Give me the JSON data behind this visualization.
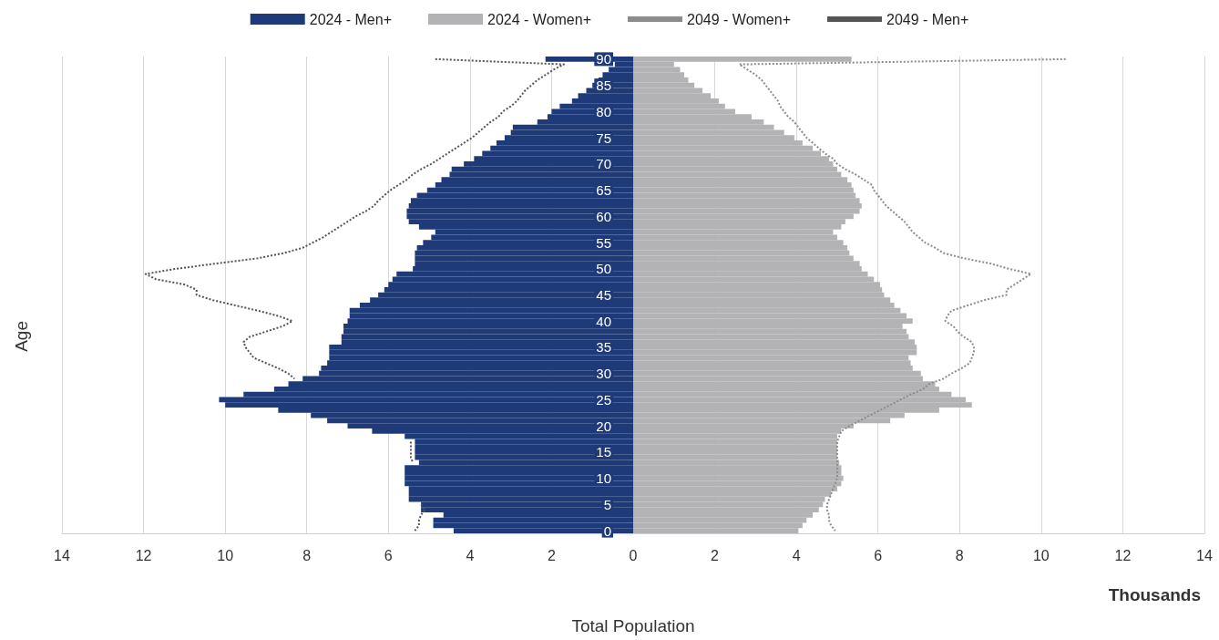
{
  "chart_data": {
    "type": "bar",
    "orientation": "horizontal",
    "xlabel": "Total Population",
    "ylabel": "Age",
    "annotations": [
      "Thousands"
    ],
    "categories": [
      "90",
      null,
      null,
      null,
      null,
      "85",
      null,
      null,
      null,
      null,
      "80",
      null,
      null,
      null,
      null,
      "75",
      null,
      null,
      null,
      null,
      "70",
      null,
      null,
      null,
      null,
      "65",
      null,
      null,
      null,
      null,
      "60",
      null,
      null,
      null,
      null,
      "55",
      null,
      null,
      null,
      null,
      "50",
      null,
      null,
      null,
      null,
      "45",
      null,
      null,
      null,
      null,
      "40",
      null,
      null,
      null,
      null,
      "35",
      null,
      null,
      null,
      null,
      "30",
      null,
      null,
      null,
      null,
      "25",
      null,
      null,
      null,
      null,
      "20",
      null,
      null,
      null,
      null,
      "15",
      null,
      null,
      null,
      null,
      "10",
      null,
      null,
      null,
      null,
      "5",
      null,
      null,
      null,
      null,
      "0"
    ],
    "series": [
      {
        "name": "2024 - Men+",
        "color": "#1f3a78",
        "values": [
          -2.15,
          -0.45,
          -0.6,
          -0.75,
          -0.85,
          -1.0,
          -1.15,
          -1.35,
          -1.5,
          -1.8,
          -2.0,
          -2.1,
          -2.35,
          -2.95,
          -3.0,
          -3.15,
          -3.35,
          -3.5,
          -3.7,
          -3.9,
          -4.15,
          -4.45,
          -4.5,
          -4.7,
          -4.85,
          -5.05,
          -5.3,
          -5.45,
          -5.5,
          -5.55,
          -5.55,
          -5.5,
          -5.25,
          -4.85,
          -4.95,
          -5.15,
          -5.3,
          -5.35,
          -5.35,
          -5.35,
          -5.4,
          -5.8,
          -5.9,
          -6.0,
          -6.1,
          -6.25,
          -6.45,
          -6.7,
          -6.95,
          -6.95,
          -7.0,
          -7.1,
          -7.1,
          -7.15,
          -7.15,
          -7.45,
          -7.45,
          -7.45,
          -7.5,
          -7.65,
          -7.7,
          -8.1,
          -8.45,
          -8.8,
          -9.55,
          -10.15,
          -10.0,
          -8.7,
          -7.9,
          -7.5,
          -7.0,
          -6.4,
          -5.6,
          -5.35,
          -5.35,
          -5.35,
          -5.35,
          -5.25,
          -5.6,
          -5.6,
          -5.6,
          -5.6,
          -5.5,
          -5.5,
          -5.5,
          -5.2,
          -5.2,
          -4.65,
          -4.9,
          -4.9,
          -4.4
        ]
      },
      {
        "name": "2024 - Women+",
        "color": "#b3b3b6",
        "values": [
          5.35,
          1.0,
          1.15,
          1.25,
          1.35,
          1.5,
          1.7,
          1.9,
          2.1,
          2.25,
          2.5,
          2.9,
          3.2,
          3.45,
          3.7,
          3.95,
          4.15,
          4.4,
          4.6,
          4.8,
          4.9,
          5.0,
          5.1,
          5.25,
          5.35,
          5.4,
          5.45,
          5.55,
          5.6,
          5.55,
          5.4,
          5.2,
          5.1,
          4.9,
          5.0,
          5.15,
          5.25,
          5.3,
          5.4,
          5.55,
          5.6,
          5.75,
          5.9,
          6.05,
          6.1,
          6.15,
          6.3,
          6.4,
          6.55,
          6.7,
          6.85,
          6.6,
          6.7,
          6.75,
          6.9,
          6.95,
          6.95,
          6.75,
          6.8,
          6.85,
          7.05,
          7.1,
          7.4,
          7.5,
          7.8,
          8.15,
          8.3,
          7.5,
          6.65,
          6.3,
          5.4,
          5.1,
          5.0,
          5.0,
          5.0,
          5.0,
          5.0,
          5.05,
          5.1,
          5.1,
          5.15,
          5.1,
          5.0,
          4.85,
          4.7,
          4.65,
          4.55,
          4.4,
          4.25,
          4.15,
          4.05
        ]
      },
      {
        "name": "2049 - Women+",
        "type": "line",
        "color": "#8c8c8c",
        "line_style": "dotted",
        "marker": "none",
        "values": [
          10.6,
          2.6,
          2.8,
          3.0,
          3.15,
          3.25,
          3.35,
          3.45,
          3.55,
          3.6,
          3.7,
          3.8,
          3.95,
          4.05,
          4.15,
          4.25,
          4.4,
          4.55,
          4.7,
          4.9,
          5.0,
          5.2,
          5.45,
          5.65,
          5.85,
          5.9,
          6.0,
          6.1,
          6.2,
          6.35,
          6.5,
          6.65,
          6.75,
          6.85,
          7.0,
          7.15,
          7.4,
          7.6,
          8.1,
          8.75,
          9.2,
          9.75,
          9.55,
          9.35,
          9.15,
          9.15,
          8.6,
          8.2,
          7.8,
          7.7,
          7.65,
          7.85,
          7.95,
          8.1,
          8.3,
          8.35,
          8.35,
          8.3,
          8.25,
          8.05,
          7.8,
          7.6,
          7.25,
          7.1,
          6.8,
          6.55,
          6.3,
          6.05,
          5.8,
          5.55,
          5.3,
          5.1,
          5.05,
          5.0,
          5.0,
          5.0,
          5.0,
          5.0,
          5.0,
          5.0,
          5.0,
          4.95,
          4.9,
          4.85,
          4.8,
          4.75,
          4.75,
          4.8,
          4.8,
          4.85,
          4.95
        ]
      },
      {
        "name": "2049 - Men+",
        "type": "line",
        "color": "#555555",
        "line_style": "dotted",
        "marker": "none",
        "values": [
          -4.85,
          -1.7,
          -1.95,
          -2.15,
          -2.35,
          -2.5,
          -2.65,
          -2.75,
          -2.85,
          -3.0,
          -3.2,
          -3.3,
          -3.5,
          -3.65,
          -3.8,
          -3.95,
          -4.15,
          -4.35,
          -4.55,
          -4.75,
          -4.95,
          -5.2,
          -5.4,
          -5.55,
          -5.75,
          -5.95,
          -6.1,
          -6.25,
          -6.35,
          -6.55,
          -6.8,
          -7.0,
          -7.2,
          -7.4,
          -7.6,
          -7.85,
          -8.1,
          -8.55,
          -9.2,
          -10.2,
          -11.2,
          -11.95,
          -11.7,
          -11.0,
          -10.7,
          -10.7,
          -10.3,
          -9.75,
          -9.2,
          -8.7,
          -8.35,
          -8.6,
          -9.0,
          -9.4,
          -9.55,
          -9.5,
          -9.4,
          -9.3,
          -9.0,
          -8.7,
          -8.45,
          -8.3,
          null,
          null,
          null,
          null,
          null,
          null,
          null,
          null,
          null,
          null,
          null,
          -5.45,
          -5.45,
          -5.45,
          -5.45,
          -5.4,
          null,
          null,
          null,
          null,
          null,
          null,
          null,
          -5.2,
          -5.1,
          -5.2,
          -5.25,
          -5.25,
          -5.35
        ]
      }
    ],
    "xlim": [
      -14,
      14
    ],
    "xticks": [
      {
        "value": -14,
        "label": "14"
      },
      {
        "value": -12,
        "label": "12"
      },
      {
        "value": -10,
        "label": "10"
      },
      {
        "value": -8,
        "label": "8"
      },
      {
        "value": -6,
        "label": "6"
      },
      {
        "value": -4,
        "label": "4"
      },
      {
        "value": -2,
        "label": "2"
      },
      0,
      2,
      4,
      6,
      8,
      10,
      12,
      14
    ],
    "stacked": true,
    "grid": "x",
    "legend": "top"
  }
}
